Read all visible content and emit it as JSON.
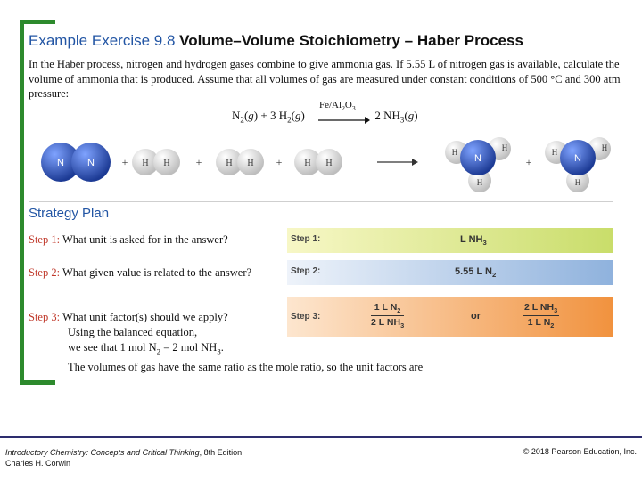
{
  "title": {
    "prefix": "Example Exercise 9.8",
    "main": "Volume–Volume Stoichiometry – Haber Process"
  },
  "intro": "In the Haber process, nitrogen and hydrogen gases combine to give ammonia gas. If 5.55 L of nitrogen gas is available, calculate the volume of ammonia that is produced. Assume that all volumes of gas are measured under constant conditions of 500 °C and 300 atm pressure:",
  "equation": {
    "left": "N2(g) + 3 H2(g)",
    "catalyst": "Fe/Al2O3",
    "right": "2 NH3(g)"
  },
  "molecules": {
    "n_label": "N",
    "h_label": "H",
    "plus": "+",
    "colors": {
      "nitrogen": "#2b4fb0",
      "hydrogen": "#e8e8e8"
    }
  },
  "strategy_title": "Strategy Plan",
  "steps": [
    {
      "label": "Step 1:",
      "question": "What unit is asked for in the answer?",
      "tag": "Step 1:",
      "value": "L NH3"
    },
    {
      "label": "Step 2:",
      "question": "What given value is related to the answer?",
      "tag": "Step 2:",
      "value": "5.55 L N2"
    },
    {
      "label": "Step 3:",
      "question": "What unit factor(s) should we apply?",
      "tag": "Step 3:",
      "factor1_num": "1 L N2",
      "factor1_den": "2 L NH3",
      "or": "or",
      "factor2_num": "2 L NH3",
      "factor2_den": "1 L N2"
    }
  ],
  "step3_lines": [
    "Using the balanced equation,",
    "we see that 1 mol N2 = 2 mol NH3.",
    "The volumes of gas have the same ratio as the mole ratio, so the unit factors are"
  ],
  "footer": {
    "book": "Introductory Chemistry: Concepts and Critical Thinking",
    "edition": ", 8th Edition",
    "author": "Charles H. Corwin",
    "copyright": "© 2018 Pearson Education, Inc."
  }
}
